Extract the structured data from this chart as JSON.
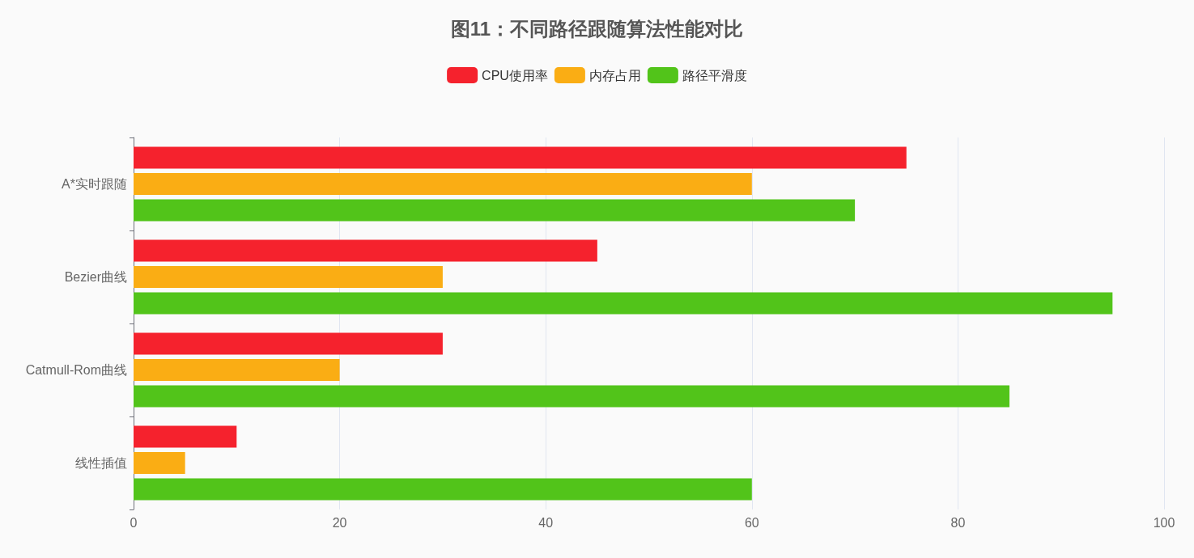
{
  "chart_data": {
    "type": "bar",
    "orientation": "horizontal",
    "title": "图11：不同路径跟随算法性能对比",
    "categories": [
      "A*实时跟随",
      "Bezier曲线",
      "Catmull-Rom曲线",
      "线性插值"
    ],
    "series": [
      {
        "name": "CPU使用率",
        "color": "#f5222d",
        "values": [
          75,
          45,
          30,
          10
        ]
      },
      {
        "name": "内存占用",
        "color": "#faad14",
        "values": [
          60,
          30,
          20,
          5
        ]
      },
      {
        "name": "路径平滑度",
        "color": "#52c41a",
        "values": [
          70,
          95,
          85,
          60
        ]
      }
    ],
    "xlim": [
      0,
      100
    ],
    "xticks": [
      0,
      20,
      40,
      60,
      80,
      100
    ],
    "grid": "x",
    "legend": "top"
  }
}
